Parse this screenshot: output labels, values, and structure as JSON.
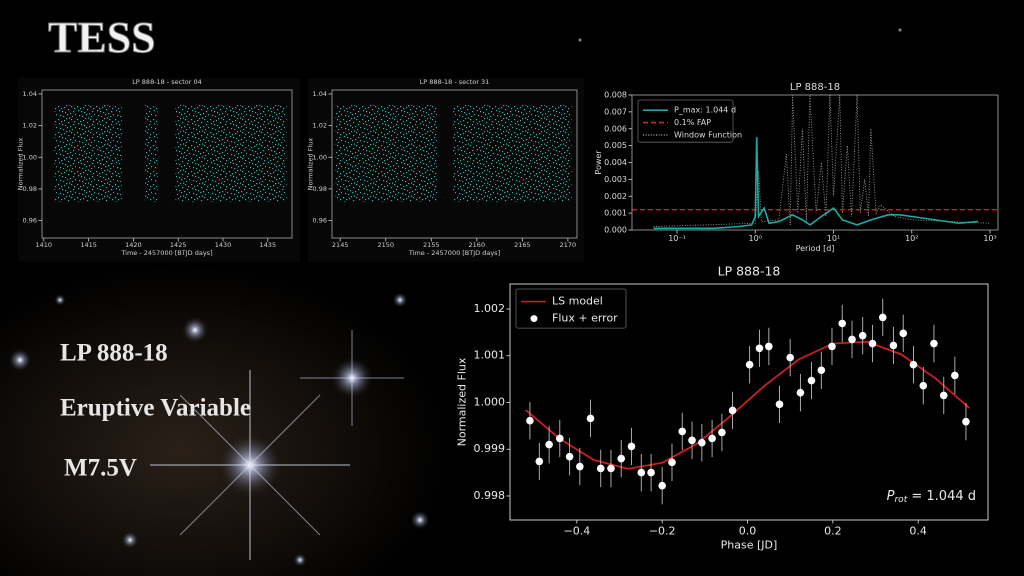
{
  "slide": {
    "title": "TESS",
    "target": "LP 888-18",
    "class": "Eruptive Variable",
    "spectral_type": "M7.5V"
  },
  "chart_data": [
    {
      "type": "scatter_band",
      "title": "LP 888-18 - sector 04",
      "xlabel": "Time - 2457000 [BTJD days]",
      "ylabel": "Normalized Flux",
      "xlim": [
        1409.8,
        1437.7
      ],
      "ylim": [
        0.949,
        1.0425
      ],
      "xticks": [
        1410,
        1415,
        1420,
        1425,
        1430,
        1435
      ],
      "yticks": [
        0.96,
        0.98,
        {
          "value": 1,
          "label": "1.00"
        },
        1.02,
        1.04
      ],
      "color": "#2fb8b2",
      "band": [
        0.972,
        1.033
      ],
      "segments": [
        [
          1411.2,
          1418.7
        ],
        [
          1421.3,
          1422.7
        ],
        [
          1424.7,
          1437.1
        ]
      ]
    },
    {
      "type": "scatter_band",
      "title": "LP 888-18 - sector 31",
      "xlabel": "Time - 2457000 [BTJD days]",
      "ylabel": "Normalized Flux",
      "xlim": [
        2144.1,
        2171
      ],
      "ylim": [
        0.949,
        1.0425
      ],
      "xticks": [
        2145,
        2150,
        2155,
        2160,
        2165,
        2170
      ],
      "yticks": [
        0.96,
        0.98,
        {
          "value": 1,
          "label": "1.00"
        },
        1.02,
        1.04
      ],
      "color": "#2fb8b2",
      "band": [
        0.972,
        1.033
      ],
      "segments": [
        [
          2144.5,
          2155.7
        ],
        [
          2157.4,
          2170.4
        ]
      ]
    },
    {
      "type": "line",
      "title": "LP 888-18",
      "xlabel": "Period [d]",
      "ylabel": "Power",
      "xscale": "log",
      "xlim": [
        0.0266,
        1265
      ],
      "ylim": [
        0,
        0.008
      ],
      "xticks": [
        {
          "value": 0.1,
          "label": "10⁻¹"
        },
        {
          "value": 1,
          "label": "10⁰"
        },
        {
          "value": 10,
          "label": "10¹"
        },
        {
          "value": 100,
          "label": "10²"
        },
        {
          "value": 1000,
          "label": "10³"
        }
      ],
      "yticks": [
        {
          "value": 0,
          "label": "0.000"
        },
        0.001,
        0.002,
        0.003,
        0.004,
        0.005,
        0.006,
        0.007,
        0.008
      ],
      "legend": "upper left",
      "series": [
        {
          "name": "P_max: 1.044 d",
          "color": "#20a8a4",
          "style": "solid",
          "x": [
            0.05,
            0.1,
            0.3,
            0.6,
            0.9,
            1.0,
            1.044,
            1.1,
            1.3,
            1.5,
            2,
            3,
            4,
            5,
            7,
            10,
            13,
            20,
            30,
            50,
            70,
            100,
            200,
            400,
            700
          ],
          "values": [
            0.0001,
            0.0001,
            0.0001,
            0.0002,
            0.0003,
            0.0008,
            0.0055,
            0.0008,
            0.0013,
            0.0004,
            0.0005,
            0.0009,
            0.0006,
            0.0003,
            0.0008,
            0.0013,
            0.0006,
            0.0003,
            0.0006,
            0.0009,
            0.0009,
            0.0008,
            0.0006,
            0.0004,
            0.0005
          ]
        },
        {
          "name": "Window Function",
          "color": "#9a9a9a",
          "style": "dotted",
          "x": [
            0.05,
            1,
            1.1,
            1.2,
            2,
            2.5,
            2.8,
            3,
            3.5,
            4,
            4.5,
            5,
            6,
            7,
            8,
            9,
            10,
            12,
            13,
            15,
            17,
            20,
            22,
            25,
            28,
            30,
            35,
            40,
            60,
            100,
            1000
          ],
          "values": [
            0.0002,
            0.0004,
            0.0035,
            0.0005,
            0.0006,
            0.0045,
            0.0003,
            0.008,
            0.001,
            0.006,
            0.0005,
            0.008,
            0.001,
            0.004,
            0.0008,
            0.008,
            0.002,
            0.008,
            0.001,
            0.005,
            0.0008,
            0.008,
            0.001,
            0.003,
            0.0008,
            0.006,
            0.001,
            0.0015,
            0.0008,
            0.0006,
            0.0004
          ]
        }
      ],
      "hlines": [
        {
          "name": "0.1% FAP",
          "value": 0.0012,
          "color": "#d62728",
          "style": "dashed"
        }
      ]
    },
    {
      "type": "errorbar",
      "title": "LP 888-18",
      "xlabel": "Phase [JD]",
      "ylabel": "Normalized Flux",
      "xlim": [
        -0.5567,
        0.5637
      ],
      "ylim": [
        0.997486,
        1.002535
      ],
      "xticks": [
        {
          "value": -0.4,
          "label": "−0.4"
        },
        {
          "value": -0.2,
          "label": "−0.2"
        },
        {
          "value": 0,
          "label": "0.0"
        },
        0.2,
        0.4
      ],
      "yticks": [
        0.998,
        0.999,
        {
          "value": 1,
          "label": "1.000"
        },
        1.001,
        1.002
      ],
      "legend": "upper left",
      "annotation": {
        "symbol": "P",
        "subscript": "rot",
        "text": " = 1.044 d"
      },
      "series": [
        {
          "name": "LS model",
          "color": "#d01c1c",
          "kind": "line",
          "x": [
            -0.52,
            -0.44,
            -0.36,
            -0.28,
            -0.2,
            -0.12,
            -0.04,
            0.04,
            0.12,
            0.2,
            0.28,
            0.36,
            0.44,
            0.52
          ],
          "values": [
            0.99984,
            0.99922,
            0.99877,
            0.99858,
            0.99871,
            0.99911,
            0.99971,
            1.00036,
            1.00092,
            1.00126,
            1.0013,
            1.00103,
            1.00052,
            0.99988
          ]
        },
        {
          "name": "Flux + error",
          "color": "#ffffff",
          "kind": "points",
          "x": [
            -0.51,
            -0.488,
            -0.465,
            -0.44,
            -0.417,
            -0.393,
            -0.368,
            -0.344,
            -0.32,
            -0.296,
            -0.272,
            -0.249,
            -0.226,
            -0.2,
            -0.177,
            -0.153,
            -0.13,
            -0.107,
            -0.083,
            -0.06,
            -0.035,
            0.005,
            0.028,
            0.05,
            0.075,
            0.1,
            0.124,
            0.15,
            0.173,
            0.198,
            0.222,
            0.245,
            0.27,
            0.293,
            0.317,
            0.342,
            0.365,
            0.389,
            0.412,
            0.437,
            0.46,
            0.486,
            0.512
          ],
          "values": [
            0.99961,
            0.99874,
            0.9991,
            0.99923,
            0.99884,
            0.99863,
            0.99966,
            0.99859,
            0.99859,
            0.9988,
            0.99906,
            0.9985,
            0.9985,
            0.99822,
            0.99872,
            0.99938,
            0.99919,
            0.99914,
            0.99923,
            0.99936,
            0.99983,
            1.00081,
            1.00116,
            1.0012,
            0.99996,
            1.00096,
            1.00021,
            1.00047,
            1.00069,
            1.0012,
            1.00169,
            1.00135,
            1.00143,
            1.00126,
            1.00182,
            1.00122,
            1.00148,
            1.00081,
            1.00036,
            1.00126,
            1.00015,
            1.00058,
            0.99959
          ],
          "errors": [
            0.0004,
            0.0004,
            0.0004,
            0.0004,
            0.0004,
            0.0004,
            0.0004,
            0.0004,
            0.0004,
            0.0004,
            0.0004,
            0.0004,
            0.0004,
            0.0004,
            0.0004,
            0.0004,
            0.0004,
            0.0004,
            0.0004,
            0.0004,
            0.0004,
            0.0004,
            0.0004,
            0.0004,
            0.0004,
            0.0004,
            0.0004,
            0.0004,
            0.0004,
            0.0004,
            0.0004,
            0.0004,
            0.0004,
            0.0004,
            0.0004,
            0.0004,
            0.0004,
            0.0004,
            0.0004,
            0.0004,
            0.0004,
            0.0004,
            0.0004
          ]
        }
      ]
    }
  ]
}
